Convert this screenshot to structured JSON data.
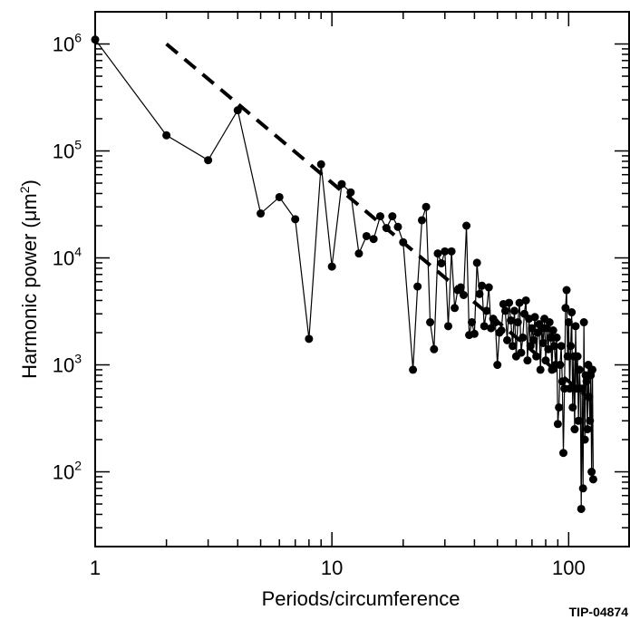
{
  "chart_data": {
    "type": "scatter",
    "title": "",
    "xlabel": "Periods/circumference",
    "ylabel_prefix": "Harmonic power (μm",
    "ylabel_sup": "2",
    "ylabel_suffix": ")",
    "x_scale": "log",
    "y_scale": "log",
    "xlim": [
      1,
      180
    ],
    "ylim": [
      20,
      2000000
    ],
    "x_ticks": [
      {
        "value": 1,
        "label": "1"
      },
      {
        "value": 10,
        "label": "10"
      },
      {
        "value": 100,
        "label": "100"
      }
    ],
    "y_ticks": [
      {
        "value": 100,
        "base": "10",
        "exp": "2"
      },
      {
        "value": 1000,
        "base": "10",
        "exp": "3"
      },
      {
        "value": 10000,
        "base": "10",
        "exp": "4"
      },
      {
        "value": 100000,
        "base": "10",
        "exp": "5"
      },
      {
        "value": 1000000,
        "base": "10",
        "exp": "6"
      }
    ],
    "grid": false,
    "series": [
      {
        "style": "line-with-markers",
        "points": [
          [
            1,
            1100000
          ],
          [
            2,
            140000
          ],
          [
            3,
            82000
          ],
          [
            4,
            240000
          ],
          [
            5,
            26000
          ],
          [
            6,
            37000
          ],
          [
            7,
            23000
          ],
          [
            8,
            1750
          ],
          [
            9,
            75000
          ],
          [
            10,
            8300
          ],
          [
            11,
            49000
          ],
          [
            12,
            41000
          ],
          [
            13,
            11000
          ],
          [
            14,
            16000
          ],
          [
            15,
            15000
          ],
          [
            16,
            24500
          ],
          [
            17,
            19000
          ],
          [
            18,
            24500
          ],
          [
            19,
            19500
          ],
          [
            20,
            14000
          ],
          [
            22,
            900
          ],
          [
            23,
            5400
          ],
          [
            24,
            22500
          ],
          [
            25,
            30000
          ],
          [
            26,
            2500
          ],
          [
            27,
            1400
          ],
          [
            28,
            11000
          ],
          [
            29,
            8900
          ],
          [
            30,
            11500
          ],
          [
            31,
            2300
          ],
          [
            32,
            11500
          ],
          [
            33,
            3400
          ],
          [
            34,
            5000
          ],
          [
            35,
            5300
          ],
          [
            36,
            4500
          ],
          [
            37,
            20000
          ],
          [
            38,
            1900
          ],
          [
            39,
            2500
          ],
          [
            40,
            1950
          ],
          [
            41,
            9000
          ],
          [
            42,
            4600
          ],
          [
            43,
            5500
          ],
          [
            44,
            2300
          ],
          [
            45,
            3200
          ],
          [
            46,
            5300
          ],
          [
            47,
            2200
          ],
          [
            48,
            2700
          ],
          [
            49,
            2500
          ],
          [
            50,
            1000
          ],
          [
            51,
            2000
          ],
          [
            52,
            2100
          ],
          [
            53,
            3700
          ],
          [
            54,
            3200
          ],
          [
            55,
            1700
          ],
          [
            56,
            3800
          ],
          [
            57,
            2600
          ],
          [
            58,
            1500
          ],
          [
            59,
            3200
          ],
          [
            60,
            1200
          ],
          [
            61,
            2500
          ],
          [
            62,
            3800
          ],
          [
            63,
            1300
          ],
          [
            64,
            1800
          ],
          [
            65,
            3000
          ],
          [
            66,
            4000
          ],
          [
            67,
            1100
          ],
          [
            68,
            2700
          ],
          [
            69,
            1500
          ],
          [
            70,
            2200
          ],
          [
            71,
            1700
          ],
          [
            72,
            2800
          ],
          [
            73,
            1200
          ],
          [
            74,
            2000
          ],
          [
            75,
            2400
          ],
          [
            76,
            900
          ],
          [
            77,
            2200
          ],
          [
            78,
            1600
          ],
          [
            79,
            2700
          ],
          [
            80,
            1100
          ],
          [
            81,
            2200
          ],
          [
            82,
            1400
          ],
          [
            83,
            2500
          ],
          [
            84,
            1800
          ],
          [
            85,
            900
          ],
          [
            86,
            2100
          ],
          [
            87,
            1500
          ],
          [
            88,
            1000
          ],
          [
            89,
            1800
          ],
          [
            90,
            280
          ],
          [
            91,
            400
          ],
          [
            92,
            1000
          ],
          [
            93,
            1500
          ],
          [
            94,
            700
          ],
          [
            95,
            150
          ],
          [
            96,
            600
          ],
          [
            97,
            3400
          ],
          [
            98,
            5000
          ],
          [
            99,
            1200
          ],
          [
            100,
            2500
          ],
          [
            101,
            600
          ],
          [
            102,
            1500
          ],
          [
            103,
            3100
          ],
          [
            104,
            400
          ],
          [
            105,
            1200
          ],
          [
            106,
            250
          ],
          [
            107,
            2300
          ],
          [
            108,
            600
          ],
          [
            109,
            1200
          ],
          [
            110,
            300
          ],
          [
            111,
            900
          ],
          [
            112,
            600
          ],
          [
            113,
            45
          ],
          [
            114,
            600
          ],
          [
            115,
            70
          ],
          [
            116,
            2500
          ],
          [
            117,
            200
          ],
          [
            118,
            800
          ],
          [
            119,
            700
          ],
          [
            120,
            250
          ],
          [
            121,
            1000
          ],
          [
            122,
            500
          ],
          [
            123,
            300
          ],
          [
            124,
            800
          ],
          [
            125,
            100
          ],
          [
            126,
            900
          ],
          [
            127,
            85
          ]
        ]
      },
      {
        "style": "dashed-line",
        "points": [
          [
            2,
            1000000
          ],
          [
            120,
            500
          ]
        ]
      }
    ]
  },
  "annotations": {
    "figure_id": "TIP-04874"
  }
}
